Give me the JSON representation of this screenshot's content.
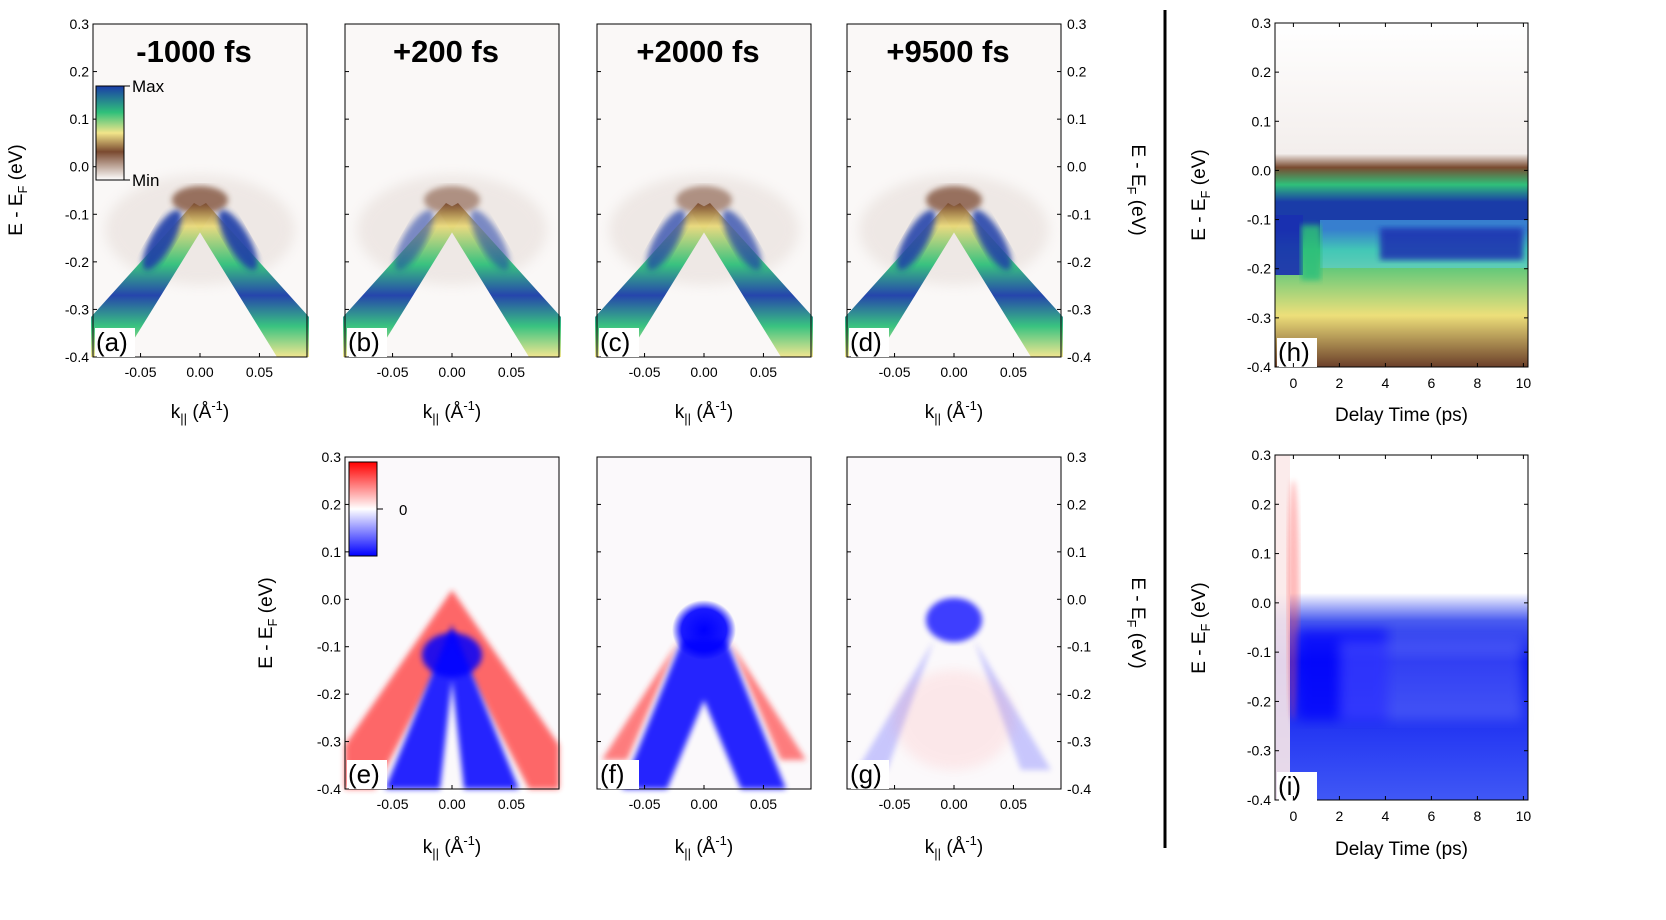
{
  "figure": {
    "colors": {
      "separator": "#000000"
    }
  },
  "panels_top": [
    {
      "label": "(a)",
      "title": "-1000 fs"
    },
    {
      "label": "(b)",
      "title": "+200 fs"
    },
    {
      "label": "(c)",
      "title": "+2000 fs"
    },
    {
      "label": "(d)",
      "title": "+9500 fs"
    }
  ],
  "panels_bottom": [
    {
      "label": "(e)"
    },
    {
      "label": "(f)"
    },
    {
      "label": "(g)"
    }
  ],
  "panels_right": [
    {
      "label": "(h)"
    },
    {
      "label": "(i)"
    }
  ],
  "axes": {
    "energy_label_main": "E - E",
    "energy_label_sub": "F",
    "energy_label_unit": "(eV)",
    "k_label_main": "k",
    "k_label_sub": "||",
    "k_label_unit_pre": "(Å",
    "k_label_unit_sup": "-1",
    "k_label_unit_post": ")",
    "delay_label": "Delay Time (ps)",
    "energy_ticks": [
      "0.3",
      "0.2",
      "0.1",
      "0.0",
      "-0.1",
      "-0.2",
      "-0.3",
      "-0.4"
    ],
    "k_ticks": [
      "-0.05",
      "0.00",
      "0.05"
    ],
    "delay_ticks": [
      "0",
      "2",
      "4",
      "6",
      "8",
      "10"
    ]
  },
  "colorbars": {
    "intensity": {
      "max_label": "Max",
      "min_label": "Min",
      "colors": [
        "#ffffff",
        "#7a4a30",
        "#f2e58a",
        "#2fc07a",
        "#1a3ca8"
      ]
    },
    "difference": {
      "zero_label": "0",
      "colors": [
        "#ff0000",
        "#ffffff",
        "#0000ff"
      ]
    }
  },
  "chart_data": [
    {
      "type": "heatmap",
      "id": "a",
      "title": "-1000 fs",
      "xlabel": "k|| (Å^-1)",
      "ylabel": "E - EF (eV)",
      "xlim": [
        -0.09,
        0.09
      ],
      "ylim": [
        -0.4,
        0.3
      ],
      "colormap": "Min-to-Max (white-brown-yellow-green-blue)",
      "description": "Dirac-cone-like bands crossing near -0.08 eV"
    },
    {
      "type": "heatmap",
      "id": "b",
      "title": "+200 fs",
      "xlabel": "k|| (Å^-1)",
      "ylabel": "E - EF (eV)",
      "xlim": [
        -0.09,
        0.09
      ],
      "ylim": [
        -0.4,
        0.3
      ]
    },
    {
      "type": "heatmap",
      "id": "c",
      "title": "+2000 fs",
      "xlabel": "k|| (Å^-1)",
      "ylabel": "E - EF (eV)",
      "xlim": [
        -0.09,
        0.09
      ],
      "ylim": [
        -0.4,
        0.3
      ]
    },
    {
      "type": "heatmap",
      "id": "d",
      "title": "+9500 fs",
      "xlabel": "k|| (Å^-1)",
      "ylabel": "E - EF (eV)",
      "xlim": [
        -0.09,
        0.09
      ],
      "ylim": [
        -0.4,
        0.3
      ]
    },
    {
      "type": "heatmap",
      "id": "e",
      "xlabel": "k|| (Å^-1)",
      "ylabel": "E - EF (eV)",
      "xlim": [
        -0.09,
        0.09
      ],
      "ylim": [
        -0.4,
        0.3
      ],
      "colormap": "difference red-white-blue"
    },
    {
      "type": "heatmap",
      "id": "f",
      "xlabel": "k|| (Å^-1)",
      "ylabel": "E - EF (eV)",
      "xlim": [
        -0.09,
        0.09
      ],
      "ylim": [
        -0.4,
        0.3
      ]
    },
    {
      "type": "heatmap",
      "id": "g",
      "xlabel": "k|| (Å^-1)",
      "ylabel": "E - EF (eV)",
      "xlim": [
        -0.09,
        0.09
      ],
      "ylim": [
        -0.4,
        0.3
      ]
    },
    {
      "type": "heatmap",
      "id": "h",
      "xlabel": "Delay Time (ps)",
      "ylabel": "E - EF (eV)",
      "xlim": [
        -0.8,
        10.2
      ],
      "ylim": [
        -0.4,
        0.3
      ]
    },
    {
      "type": "heatmap",
      "id": "i",
      "xlabel": "Delay Time (ps)",
      "ylabel": "E - EF (eV)",
      "xlim": [
        -0.8,
        10.2
      ],
      "ylim": [
        -0.4,
        0.3
      ]
    }
  ]
}
